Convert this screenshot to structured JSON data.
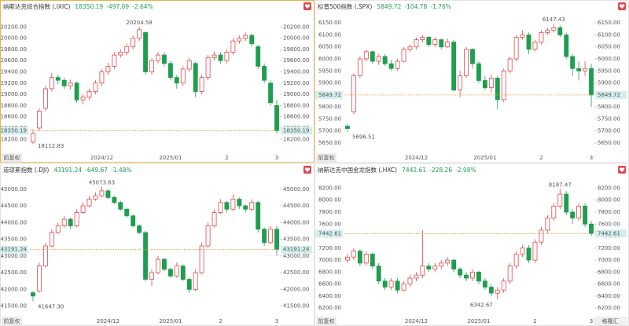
{
  "chart_data": [
    {
      "type": "candlestick",
      "title": "纳斯达克综合指数 (.IXIC)",
      "change": -497.09,
      "change_pct": {
        "value": -2.64,
        "label": "-2.64%"
      },
      "categories": [
        null,
        null,
        null,
        null,
        null,
        null,
        null,
        null,
        null,
        null,
        null,
        "2024/12",
        null,
        null,
        null,
        null,
        null,
        null,
        null,
        null,
        null,
        null,
        "2025/01",
        null,
        null,
        null,
        null,
        null,
        null,
        null,
        null,
        "2",
        null,
        null,
        null,
        null,
        null,
        null,
        null,
        "3"
      ],
      "open": [
        18150,
        18400,
        18750,
        19100,
        19300,
        19250,
        19150,
        19200,
        18900,
        18950,
        19050,
        19200,
        19400,
        19500,
        19700,
        19750,
        19850,
        20000,
        20100,
        19400,
        19600,
        19700,
        19550,
        19300,
        19200,
        19450,
        19550,
        19050,
        19300,
        19650,
        19700,
        19600,
        19750,
        19950,
        20000,
        20050,
        19850,
        19500,
        19200,
        18800
      ],
      "high": [
        18380,
        18750,
        19150,
        19380,
        19350,
        19300,
        19260,
        19230,
        19000,
        19100,
        19250,
        19450,
        19560,
        19750,
        19800,
        19900,
        20050,
        20204.58,
        20120,
        19650,
        19760,
        19750,
        19600,
        19350,
        19500,
        19650,
        19580,
        19350,
        19700,
        19760,
        19750,
        19800,
        20000,
        20050,
        20100,
        20080,
        19880,
        19550,
        19250,
        18900
      ],
      "low": [
        18112.83,
        18350,
        18700,
        19050,
        19180,
        19100,
        19080,
        18850,
        18820,
        18900,
        19000,
        19150,
        19350,
        19450,
        19650,
        19700,
        19800,
        19950,
        19350,
        19350,
        19550,
        19500,
        19250,
        19100,
        19150,
        19400,
        18950,
        19000,
        19250,
        19600,
        19550,
        19550,
        19700,
        19900,
        19950,
        19850,
        19450,
        19200,
        18800,
        18300
      ],
      "close": [
        18300,
        18700,
        19100,
        19300,
        19250,
        19150,
        19200,
        18900,
        18950,
        19050,
        19200,
        19400,
        19500,
        19700,
        19750,
        19850,
        20000,
        20150,
        19400,
        19600,
        19700,
        19550,
        19300,
        19200,
        19450,
        19600,
        19050,
        19300,
        19650,
        19700,
        19600,
        19750,
        19950,
        20000,
        20050,
        19900,
        19500,
        19250,
        18850,
        18350.19
      ],
      "ylim": [
        18050,
        20400
      ],
      "yticks": [
        {
          "value": 18200,
          "label": "18200.00"
        },
        {
          "value": 18400,
          "label": "18400.00"
        },
        {
          "value": 18600,
          "label": "18600.00"
        },
        {
          "value": 18800,
          "label": "18800.00"
        },
        {
          "value": 19000,
          "label": "19000.00"
        },
        {
          "value": 19200,
          "label": "19200.00"
        },
        {
          "value": 19400,
          "label": "19400.00"
        },
        {
          "value": 19600,
          "label": "19600.00"
        },
        {
          "value": 19800,
          "label": "19800.00"
        },
        {
          "value": 20000,
          "label": "20000.00"
        },
        {
          "value": 20200,
          "label": "20200.00"
        }
      ],
      "up_color": "#e0474c",
      "down_color": "#1e9e4f",
      "price_line_color": "#e6a23c",
      "button": "前复权"
    },
    {
      "type": "candlestick",
      "title": "标普500指数 (.SPX)",
      "change": -104.78,
      "change_pct": {
        "value": -1.76,
        "label": "-1.76%"
      },
      "categories": [
        null,
        null,
        null,
        null,
        null,
        null,
        null,
        null,
        null,
        null,
        null,
        "2024/12",
        null,
        null,
        null,
        null,
        null,
        null,
        null,
        null,
        null,
        null,
        "2025/01",
        null,
        null,
        null,
        null,
        null,
        null,
        null,
        null,
        "2",
        null,
        null,
        null,
        null,
        null,
        null,
        null,
        "3"
      ],
      "open": [
        5720,
        5780,
        5930,
        6000,
        6030,
        5990,
        6010,
        5980,
        5960,
        5990,
        6040,
        6050,
        6080,
        6090,
        6060,
        6080,
        6050,
        6070,
        5870,
        5930,
        6040,
        5980,
        5910,
        5880,
        5920,
        5830,
        5950,
        6000,
        6090,
        6100,
        6040,
        6070,
        6110,
        6120,
        6130,
        6100,
        6010,
        5960,
        5950,
        5960
      ],
      "high": [
        5730,
        5940,
        6010,
        6040,
        6035,
        6020,
        6020,
        5995,
        6000,
        6050,
        6060,
        6090,
        6100,
        6095,
        6090,
        6085,
        6085,
        6080,
        5950,
        6050,
        6045,
        5990,
        5930,
        5935,
        5930,
        5960,
        6010,
        6100,
        6120,
        6110,
        6080,
        6120,
        6130,
        6147.43,
        6140,
        6110,
        6020,
        5990,
        5990,
        5980
      ],
      "low": [
        5696.51,
        5770,
        5920,
        5990,
        5980,
        5975,
        5970,
        5950,
        5950,
        5985,
        6030,
        6040,
        6070,
        6050,
        6050,
        6040,
        6045,
        5865,
        5840,
        5920,
        5960,
        5900,
        5870,
        5860,
        5790,
        5820,
        5940,
        5990,
        6080,
        6020,
        6030,
        6060,
        6100,
        6110,
        6090,
        6000,
        5930,
        5910,
        5930,
        5800
      ],
      "close": [
        5710,
        5930,
        6000,
        6030,
        5990,
        6010,
        5980,
        5960,
        5990,
        6040,
        6050,
        6080,
        6090,
        6060,
        6080,
        6050,
        6070,
        5870,
        5930,
        6040,
        5980,
        5910,
        5880,
        5920,
        5830,
        5950,
        6000,
        6090,
        6100,
        6040,
        6070,
        6110,
        6120,
        6130,
        6100,
        6010,
        5960,
        5950,
        5960,
        5849.72
      ],
      "ylim": [
        5630,
        6180
      ],
      "yticks": [
        {
          "value": 5650,
          "label": "5650.00"
        },
        {
          "value": 5700,
          "label": "5700.00"
        },
        {
          "value": 5750,
          "label": "5750.00"
        },
        {
          "value": 5800,
          "label": "5800.00"
        },
        {
          "value": 5850,
          "label": "5850.00"
        },
        {
          "value": 5900,
          "label": "5900.00"
        },
        {
          "value": 5950,
          "label": "5950.00"
        },
        {
          "value": 6000,
          "label": "6000.00"
        },
        {
          "value": 6050,
          "label": "6050.00"
        },
        {
          "value": 6100,
          "label": "6100.00"
        },
        {
          "value": 6150,
          "label": "6150.00"
        }
      ],
      "up_color": "#e0474c",
      "down_color": "#1e9e4f",
      "price_line_color": "#e6a23c",
      "button": "前复权"
    },
    {
      "type": "candlestick",
      "title": "道琼斯指数 (.DJI)",
      "change": -649.67,
      "change_pct": {
        "value": -1.48,
        "label": "-1.48%"
      },
      "categories": [
        null,
        null,
        null,
        null,
        null,
        null,
        null,
        null,
        null,
        null,
        null,
        null,
        "2024/12",
        null,
        null,
        null,
        null,
        null,
        null,
        null,
        null,
        null,
        "2025/01",
        null,
        null,
        null,
        null,
        null,
        null,
        null,
        "2",
        null,
        null,
        null,
        null,
        null,
        null,
        null,
        null,
        "3"
      ],
      "open": [
        41900,
        41950,
        42700,
        43300,
        43700,
        43900,
        44100,
        43900,
        44300,
        44500,
        44700,
        44800,
        44950,
        44750,
        44600,
        44400,
        44200,
        43900,
        43700,
        42300,
        42500,
        42900,
        42600,
        42400,
        42700,
        42300,
        42000,
        42500,
        43300,
        43900,
        44300,
        44600,
        44400,
        44700,
        44500,
        44400,
        44600,
        43800,
        43400,
        43800
      ],
      "high": [
        41950,
        42800,
        43400,
        43800,
        44000,
        44200,
        44150,
        44400,
        44600,
        44800,
        44900,
        45073.63,
        45000,
        44800,
        44650,
        44450,
        44250,
        43950,
        43750,
        42600,
        43000,
        42950,
        42650,
        42800,
        42750,
        42350,
        42600,
        43400,
        44000,
        44400,
        44700,
        44650,
        44850,
        44750,
        44550,
        44700,
        44650,
        43850,
        43900,
        43900
      ],
      "low": [
        {
          "value": 41647.3,
          "label": "41647.30"
        },
        41900,
        42650,
        43250,
        43650,
        43850,
        43800,
        43850,
        44250,
        44450,
        44650,
        44750,
        44700,
        44550,
        44350,
        44150,
        43850,
        43650,
        42250,
        42100,
        42450,
        42550,
        42350,
        42350,
        42250,
        41900,
        41950,
        42450,
        43250,
        43850,
        44250,
        44300,
        44350,
        44400,
        44300,
        44350,
        43700,
        43300,
        43350,
        43000
      ],
      "close": [
        41800,
        42700,
        43300,
        43700,
        43900,
        44100,
        43900,
        44300,
        44500,
        44700,
        44800,
        44950,
        44750,
        44600,
        44400,
        44200,
        43900,
        43700,
        42300,
        42500,
        42900,
        42600,
        42400,
        42700,
        42300,
        42000,
        42500,
        43300,
        43900,
        44300,
        44600,
        44400,
        44700,
        44500,
        44400,
        44600,
        43800,
        43400,
        43800,
        43191.24
      ],
      "ylim": [
        41350,
        45300
      ],
      "yticks": [
        {
          "value": 41500,
          "label": "41500.00"
        },
        {
          "value": 42000,
          "label": "42000.00"
        },
        {
          "value": 42500,
          "label": "42500.00"
        },
        {
          "value": 43000,
          "label": "43000.00"
        },
        {
          "value": 43500,
          "label": "43500.00"
        },
        {
          "value": 44000,
          "label": "44000.00"
        },
        {
          "value": 44500,
          "label": "44500.00"
        },
        {
          "value": 45000,
          "label": "45000.00"
        }
      ],
      "up_color": "#e0474c",
      "down_color": "#1e9e4f",
      "price_line_color": "#e6a23c",
      "button": "前复权"
    },
    {
      "type": "candlestick",
      "title": "纳斯达克中国金龙指数 (.HXC)",
      "change": -228.26,
      "change_pct": {
        "value": -2.98,
        "label": "-2.98%"
      },
      "categories": [
        null,
        null,
        null,
        null,
        null,
        null,
        null,
        null,
        null,
        null,
        null,
        "2024/12",
        null,
        null,
        null,
        null,
        null,
        null,
        null,
        null,
        null,
        "2025/01",
        null,
        null,
        null,
        null,
        null,
        null,
        null,
        null,
        "2",
        null,
        null,
        null,
        null,
        null,
        null,
        null,
        null,
        "3"
      ],
      "open": [
        7000,
        7050,
        7150,
        6950,
        7100,
        6900,
        6650,
        6550,
        6650,
        6500,
        6600,
        6700,
        6750,
        6900,
        6850,
        6900,
        6950,
        7000,
        6850,
        6750,
        6700,
        6800,
        6650,
        6550,
        6450,
        6500,
        6650,
        6900,
        7100,
        7200,
        7000,
        7300,
        7500,
        7700,
        7900,
        8100,
        7800,
        7700,
        7900,
        7600
      ],
      "high": [
        7100,
        7200,
        7180,
        7150,
        7120,
        6950,
        6700,
        6700,
        6700,
        6650,
        6750,
        6800,
        7500,
        6950,
        6950,
        7000,
        7050,
        7020,
        6880,
        6800,
        6850,
        6820,
        6700,
        6600,
        6550,
        6700,
        6950,
        7150,
        7250,
        7250,
        7350,
        7550,
        7750,
        7950,
        8187.47,
        8150,
        7850,
        7950,
        7950,
        7650
      ],
      "low": [
        6950,
        7000,
        6900,
        6900,
        6850,
        6600,
        6500,
        6500,
        6450,
        6480,
        6550,
        6650,
        6700,
        6800,
        6800,
        6850,
        6900,
        6800,
        6700,
        6650,
        6650,
        6600,
        6500,
        6400,
        6342.67,
        6450,
        6600,
        6850,
        7050,
        6950,
        6950,
        7250,
        7450,
        7650,
        7850,
        7750,
        7600,
        7650,
        7550,
        7400
      ],
      "close": [
        7050,
        7150,
        6950,
        7100,
        6900,
        6650,
        6550,
        6650,
        6500,
        6600,
        6700,
        6750,
        6900,
        6850,
        6900,
        6950,
        7000,
        6850,
        6750,
        6700,
        6800,
        6650,
        6550,
        6450,
        6500,
        6650,
        6900,
        7100,
        7200,
        7000,
        7300,
        7500,
        7700,
        7900,
        8100,
        7800,
        7700,
        7900,
        7600,
        7442.61
      ],
      "ylim": [
        6150,
        8350
      ],
      "yticks": [
        {
          "value": 6200,
          "label": "6200.00"
        },
        {
          "value": 6400,
          "label": "6400.00"
        },
        {
          "value": 6600,
          "label": "6600.00"
        },
        {
          "value": 6800,
          "label": "6800.00"
        },
        {
          "value": 7000,
          "label": "7000.00"
        },
        {
          "value": 7200,
          "label": "7200.00"
        },
        {
          "value": 7400,
          "label": "7400.00"
        },
        {
          "value": 7600,
          "label": "7600.00"
        },
        {
          "value": 7800,
          "label": "7800.00"
        },
        {
          "value": 8000,
          "label": "8000.00"
        },
        {
          "value": 8200,
          "label": "8200.00"
        }
      ],
      "up_color": "#e0474c",
      "down_color": "#1e9e4f",
      "price_line_color": "#e6a23c",
      "button": "前复权"
    }
  ],
  "watermark": "格隆汇"
}
